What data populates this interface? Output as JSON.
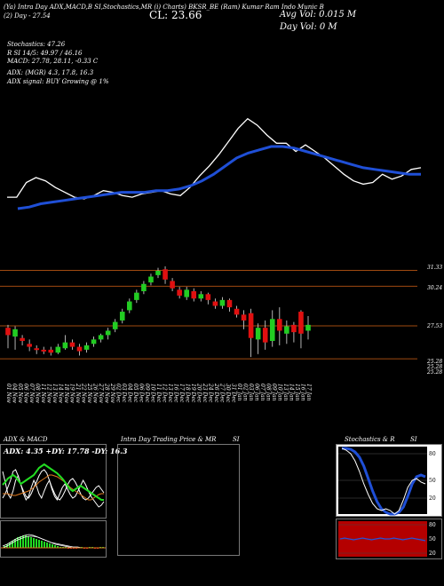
{
  "header": {
    "ticker_line": "(Ya) Intra Day ADX,MACD,B  SI,Stochastics,MR  (i) Charts) BKSR_BE  (Ram) Kumar Ram Indo Munic B",
    "sub_left": "(2) Day - 27.54",
    "close_label": "CL: 23.66",
    "avg_vol": "Avg Vol: 0.015 M",
    "day_vol": "Day Vol: 0   M"
  },
  "indicators": {
    "stochastics": "Stochastics: 47.26",
    "rsi": "R          SI 14/5: 49.97 / 46.16",
    "macd": "MACD: 27.78, 28.11, -0.33 C",
    "adx": "ADX:                              (MGR) 4.3, 17.8, 16.3",
    "adx_signal": "ADX  signal:                                  BUY Growing @ 1%"
  },
  "price_axis": [
    "31.33",
    "30.24",
    "27.53",
    "25.28",
    "25.28",
    "25.28"
  ],
  "dates": [
    "01 Nov",
    "04 Nov",
    "05 Nov",
    "06 Nov",
    "07 Nov",
    "08 Nov",
    "11 Nov",
    "12 Nov",
    "13 Nov",
    "14 Nov",
    "18 Nov",
    "19 Nov",
    "21 Nov",
    "22 Nov",
    "25 Nov",
    "26 Nov",
    "27 Nov",
    "28 Nov",
    "29 Nov",
    "02 Dec",
    "03 Dec",
    "04 Dec",
    "05 Dec",
    "06 Dec",
    "09 Dec",
    "10 Dec",
    "11 Dec",
    "12 Dec",
    "13 Dec",
    "16 Dec",
    "17 Dec",
    "18 Dec",
    "19 Dec",
    "20 Dec",
    "23 Dec",
    "24 Dec",
    "26 Dec",
    "27 Dec",
    "30 Dec",
    "31 Dec",
    "01 Jan",
    "02 Jan",
    "03 Jan",
    "06 Jan",
    "07 Jan",
    "08 Jan",
    "09 Jan",
    "10 Jan",
    "13 Jan",
    "14 Jan",
    "15 Jan",
    "16 Jan",
    "17 Jan"
  ],
  "panels": {
    "adx_title": "ADX  & MACD",
    "adx_values": "ADX: 4.35  +DY: 17.78  -DY: 16.3",
    "intra_title": "Intra  Day Trading Price  & MR",
    "intra_suffix": "SI",
    "stoch_title": "Stochastics & R",
    "stoch_suffix": "SI",
    "stoch_axis": [
      "80",
      "50",
      "20"
    ],
    "rsi_axis": [
      "80",
      "50",
      "20"
    ]
  },
  "colors": {
    "ma_line": "#1f4fd6",
    "price_line": "#ffffff",
    "candle_up": "#22cc22",
    "candle_down": "#e01010",
    "level_line": "#a04a10",
    "adx_green": "#22dd22",
    "adx_orange": "#e07a20",
    "rsi_band": "#b40000"
  },
  "chart_data": {
    "type": "candlestick",
    "title": "",
    "candles": [
      {
        "date": "01 Nov",
        "open": 27.4,
        "close": 26.9,
        "high": 27.6,
        "low": 26.0
      },
      {
        "date": "04 Nov",
        "open": 26.8,
        "close": 27.3,
        "high": 27.5,
        "low": 25.9
      },
      {
        "date": "05 Nov",
        "open": 26.7,
        "close": 26.5,
        "high": 26.9,
        "low": 26.2
      },
      {
        "date": "06 Nov",
        "open": 26.3,
        "close": 26.1,
        "high": 26.6,
        "low": 25.8
      },
      {
        "date": "07 Nov",
        "open": 26.0,
        "close": 25.9,
        "high": 26.2,
        "low": 25.6
      },
      {
        "date": "08 Nov",
        "open": 25.9,
        "close": 25.8,
        "high": 26.1,
        "low": 25.6
      },
      {
        "date": "11 Nov",
        "open": 25.9,
        "close": 25.7,
        "high": 26.1,
        "low": 25.5
      },
      {
        "date": "12 Nov",
        "open": 25.7,
        "close": 26.1,
        "high": 26.3,
        "low": 25.6
      },
      {
        "date": "13 Nov",
        "open": 26.0,
        "close": 26.4,
        "high": 26.9,
        "low": 25.9
      },
      {
        "date": "14 Nov",
        "open": 26.4,
        "close": 26.1,
        "high": 26.6,
        "low": 25.9
      },
      {
        "date": "18 Nov",
        "open": 26.1,
        "close": 25.8,
        "high": 26.3,
        "low": 25.5
      },
      {
        "date": "19 Nov",
        "open": 25.9,
        "close": 26.2,
        "high": 26.4,
        "low": 25.7
      },
      {
        "date": "21 Nov",
        "open": 26.3,
        "close": 26.6,
        "high": 26.8,
        "low": 26.1
      },
      {
        "date": "22 Nov",
        "open": 26.6,
        "close": 26.9,
        "high": 27.0,
        "low": 26.4
      },
      {
        "date": "25 Nov",
        "open": 26.9,
        "close": 27.2,
        "high": 27.4,
        "low": 26.6
      },
      {
        "date": "26 Nov",
        "open": 27.3,
        "close": 27.8,
        "high": 28.0,
        "low": 27.1
      },
      {
        "date": "27 Nov",
        "open": 27.9,
        "close": 28.5,
        "high": 28.7,
        "low": 27.7
      },
      {
        "date": "28 Nov",
        "open": 28.6,
        "close": 29.2,
        "high": 29.4,
        "low": 28.4
      },
      {
        "date": "29 Nov",
        "open": 29.3,
        "close": 29.8,
        "high": 30.0,
        "low": 29.1
      },
      {
        "date": "02 Dec",
        "open": 29.9,
        "close": 30.4,
        "high": 30.6,
        "low": 29.7
      },
      {
        "date": "03 Dec",
        "open": 30.5,
        "close": 30.9,
        "high": 31.1,
        "low": 30.3
      },
      {
        "date": "04 Dec",
        "open": 31.0,
        "close": 31.3,
        "high": 31.5,
        "low": 30.8
      },
      {
        "date": "05 Dec",
        "open": 31.4,
        "close": 30.7,
        "high": 31.6,
        "low": 30.4
      },
      {
        "date": "06 Dec",
        "open": 30.6,
        "close": 30.1,
        "high": 30.8,
        "low": 29.9
      },
      {
        "date": "09 Dec",
        "open": 30.0,
        "close": 29.6,
        "high": 30.2,
        "low": 29.4
      },
      {
        "date": "10 Dec",
        "open": 29.5,
        "close": 30.0,
        "high": 30.2,
        "low": 29.3
      },
      {
        "date": "11 Dec",
        "open": 29.9,
        "close": 29.4,
        "high": 30.1,
        "low": 29.2
      },
      {
        "date": "12 Dec",
        "open": 29.4,
        "close": 29.7,
        "high": 29.9,
        "low": 29.2
      },
      {
        "date": "13 Dec",
        "open": 29.7,
        "close": 29.3,
        "high": 29.8,
        "low": 29.0
      },
      {
        "date": "16 Dec",
        "open": 29.2,
        "close": 28.9,
        "high": 29.4,
        "low": 28.7
      },
      {
        "date": "17 Dec",
        "open": 28.9,
        "close": 29.3,
        "high": 29.5,
        "low": 28.7
      },
      {
        "date": "18 Dec",
        "open": 29.3,
        "close": 28.8,
        "high": 29.4,
        "low": 28.5
      },
      {
        "date": "19 Dec",
        "open": 28.7,
        "close": 28.3,
        "high": 28.9,
        "low": 28.1
      },
      {
        "date": "20 Dec",
        "open": 28.3,
        "close": 27.9,
        "high": 28.6,
        "low": 27.3
      },
      {
        "date": "23 Dec",
        "open": 28.4,
        "close": 26.7,
        "high": 28.7,
        "low": 25.4
      },
      {
        "date": "24 Dec",
        "open": 26.6,
        "close": 27.4,
        "high": 27.7,
        "low": 25.6
      },
      {
        "date": "26 Dec",
        "open": 27.4,
        "close": 26.4,
        "high": 27.9,
        "low": 25.9
      },
      {
        "date": "27 Dec",
        "open": 26.5,
        "close": 28.0,
        "high": 28.6,
        "low": 26.1
      },
      {
        "date": "30 Dec",
        "open": 28.0,
        "close": 27.2,
        "high": 28.8,
        "low": 26.2
      },
      {
        "date": "31 Dec",
        "open": 27.0,
        "close": 27.5,
        "high": 27.9,
        "low": 26.3
      },
      {
        "date": "01 Jan",
        "open": 27.6,
        "close": 27.1,
        "high": 27.8,
        "low": 26.4
      },
      {
        "date": "02 Jan",
        "open": 28.5,
        "close": 27.0,
        "high": 28.6,
        "low": 26.0
      },
      {
        "date": "03 Jan",
        "open": 27.2,
        "close": 27.6,
        "high": 28.2,
        "low": 26.6
      }
    ],
    "levels": [
      31.33,
      30.24,
      27.53,
      25.28
    ],
    "series": [
      {
        "values": [
          28.2,
          28.2,
          29.1,
          29.4,
          29.2,
          28.8,
          28.5,
          28.2,
          28.1,
          28.3,
          28.6,
          28.5,
          28.3,
          28.2,
          28.4,
          28.5,
          28.6,
          28.4,
          28.3,
          28.8,
          29.5,
          30.1,
          30.8,
          31.6,
          32.4,
          33.0,
          32.6,
          32.0,
          31.5,
          31.5,
          31.0,
          31.4,
          31.0,
          30.6,
          30.1,
          29.6,
          29.2,
          29.0,
          29.1,
          29.6,
          29.3,
          29.5,
          29.9,
          30.0
        ]
      },
      {
        "values": [
          27.5,
          27.6,
          27.8,
          27.9,
          28.0,
          28.1,
          28.2,
          28.3,
          28.4,
          28.5,
          28.5,
          28.5,
          28.6,
          28.6,
          28.7,
          28.9,
          29.2,
          29.6,
          30.1,
          30.6,
          30.9,
          31.1,
          31.3,
          31.3,
          31.2,
          31.0,
          30.8,
          30.6,
          30.4,
          30.2,
          30.0,
          29.9,
          29.8,
          29.7,
          29.6,
          29.6
        ]
      }
    ]
  }
}
